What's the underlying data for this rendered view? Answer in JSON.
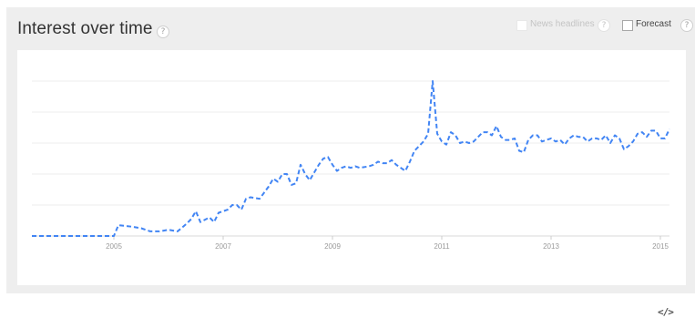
{
  "header": {
    "title": "Interest over time",
    "help_glyph": "?",
    "news_label": "News headlines",
    "forecast_label": "Forecast"
  },
  "embed_icon": "</>",
  "colors": {
    "line": "#4285f4",
    "grid": "#eeeeee",
    "panel": "#eeeeee"
  },
  "chart_data": {
    "type": "line",
    "title": "",
    "xlabel": "",
    "ylabel": "",
    "x_ticks": [
      "2005",
      "2007",
      "2009",
      "2011",
      "2013",
      "2015"
    ],
    "xlim": [
      "2004-01",
      "2015-09"
    ],
    "ylim": [
      0,
      100
    ],
    "y_gridlines": [
      0,
      20,
      40,
      60,
      80,
      100
    ],
    "grid": true,
    "line_style": "dashed",
    "series": [
      {
        "points": [
          [
            "2004-01",
            0
          ],
          [
            "2005-07",
            0
          ],
          [
            "2005-08",
            7
          ],
          [
            "2005-11",
            6
          ],
          [
            "2006-01",
            5
          ],
          [
            "2006-03",
            3
          ],
          [
            "2006-05",
            3
          ],
          [
            "2006-07",
            4
          ],
          [
            "2006-09",
            3
          ],
          [
            "2006-11",
            8
          ],
          [
            "2006-12",
            11
          ],
          [
            "2007-01",
            16
          ],
          [
            "2007-02",
            9
          ],
          [
            "2007-04",
            12
          ],
          [
            "2007-05",
            9
          ],
          [
            "2007-06",
            15
          ],
          [
            "2007-08",
            17
          ],
          [
            "2007-09",
            20
          ],
          [
            "2007-10",
            20
          ],
          [
            "2007-11",
            17
          ],
          [
            "2007-12",
            24
          ],
          [
            "2008-01",
            25
          ],
          [
            "2008-03",
            24
          ],
          [
            "2008-05",
            32
          ],
          [
            "2008-06",
            37
          ],
          [
            "2008-07",
            35
          ],
          [
            "2008-08",
            40
          ],
          [
            "2008-09",
            40
          ],
          [
            "2008-10",
            33
          ],
          [
            "2008-11",
            34
          ],
          [
            "2008-12",
            46
          ],
          [
            "2009-01",
            40
          ],
          [
            "2009-02",
            36
          ],
          [
            "2009-03",
            41
          ],
          [
            "2009-04",
            46
          ],
          [
            "2009-05",
            50
          ],
          [
            "2009-06",
            51
          ],
          [
            "2009-07",
            46
          ],
          [
            "2009-08",
            42
          ],
          [
            "2009-09",
            44
          ],
          [
            "2009-10",
            45
          ],
          [
            "2009-11",
            44
          ],
          [
            "2009-12",
            45
          ],
          [
            "2010-01",
            44
          ],
          [
            "2010-03",
            45
          ],
          [
            "2010-04",
            46
          ],
          [
            "2010-05",
            48
          ],
          [
            "2010-06",
            47
          ],
          [
            "2010-07",
            47
          ],
          [
            "2010-08",
            49
          ],
          [
            "2010-09",
            46
          ],
          [
            "2010-10",
            44
          ],
          [
            "2010-11",
            42
          ],
          [
            "2010-12",
            48
          ],
          [
            "2011-01",
            55
          ],
          [
            "2011-03",
            61
          ],
          [
            "2011-04",
            66
          ],
          [
            "2011-05",
            100
          ],
          [
            "2011-06",
            66
          ],
          [
            "2011-07",
            61
          ],
          [
            "2011-08",
            59
          ],
          [
            "2011-09",
            67
          ],
          [
            "2011-10",
            65
          ],
          [
            "2011-11",
            60
          ],
          [
            "2011-12",
            61
          ],
          [
            "2012-01",
            60
          ],
          [
            "2012-02",
            61
          ],
          [
            "2012-03",
            64
          ],
          [
            "2012-04",
            67
          ],
          [
            "2012-05",
            67
          ],
          [
            "2012-06",
            65
          ],
          [
            "2012-07",
            71
          ],
          [
            "2012-08",
            64
          ],
          [
            "2012-09",
            62
          ],
          [
            "2012-10",
            62
          ],
          [
            "2012-11",
            63
          ],
          [
            "2012-12",
            55
          ],
          [
            "2013-01",
            54
          ],
          [
            "2013-02",
            62
          ],
          [
            "2013-03",
            65
          ],
          [
            "2013-04",
            65
          ],
          [
            "2013-05",
            61
          ],
          [
            "2013-06",
            62
          ],
          [
            "2013-07",
            63
          ],
          [
            "2013-08",
            61
          ],
          [
            "2013-09",
            62
          ],
          [
            "2013-10",
            59
          ],
          [
            "2013-11",
            63
          ],
          [
            "2013-12",
            65
          ],
          [
            "2014-01",
            64
          ],
          [
            "2014-02",
            64
          ],
          [
            "2014-03",
            61
          ],
          [
            "2014-04",
            63
          ],
          [
            "2014-05",
            63
          ],
          [
            "2014-06",
            62
          ],
          [
            "2014-07",
            65
          ],
          [
            "2014-08",
            60
          ],
          [
            "2014-09",
            65
          ],
          [
            "2014-10",
            63
          ],
          [
            "2014-11",
            56
          ],
          [
            "2014-12",
            58
          ],
          [
            "2015-01",
            61
          ],
          [
            "2015-02",
            66
          ],
          [
            "2015-03",
            67
          ],
          [
            "2015-04",
            64
          ],
          [
            "2015-05",
            68
          ],
          [
            "2015-06",
            68
          ],
          [
            "2015-07",
            63
          ],
          [
            "2015-08",
            63
          ],
          [
            "2015-09",
            69
          ]
        ]
      }
    ]
  }
}
